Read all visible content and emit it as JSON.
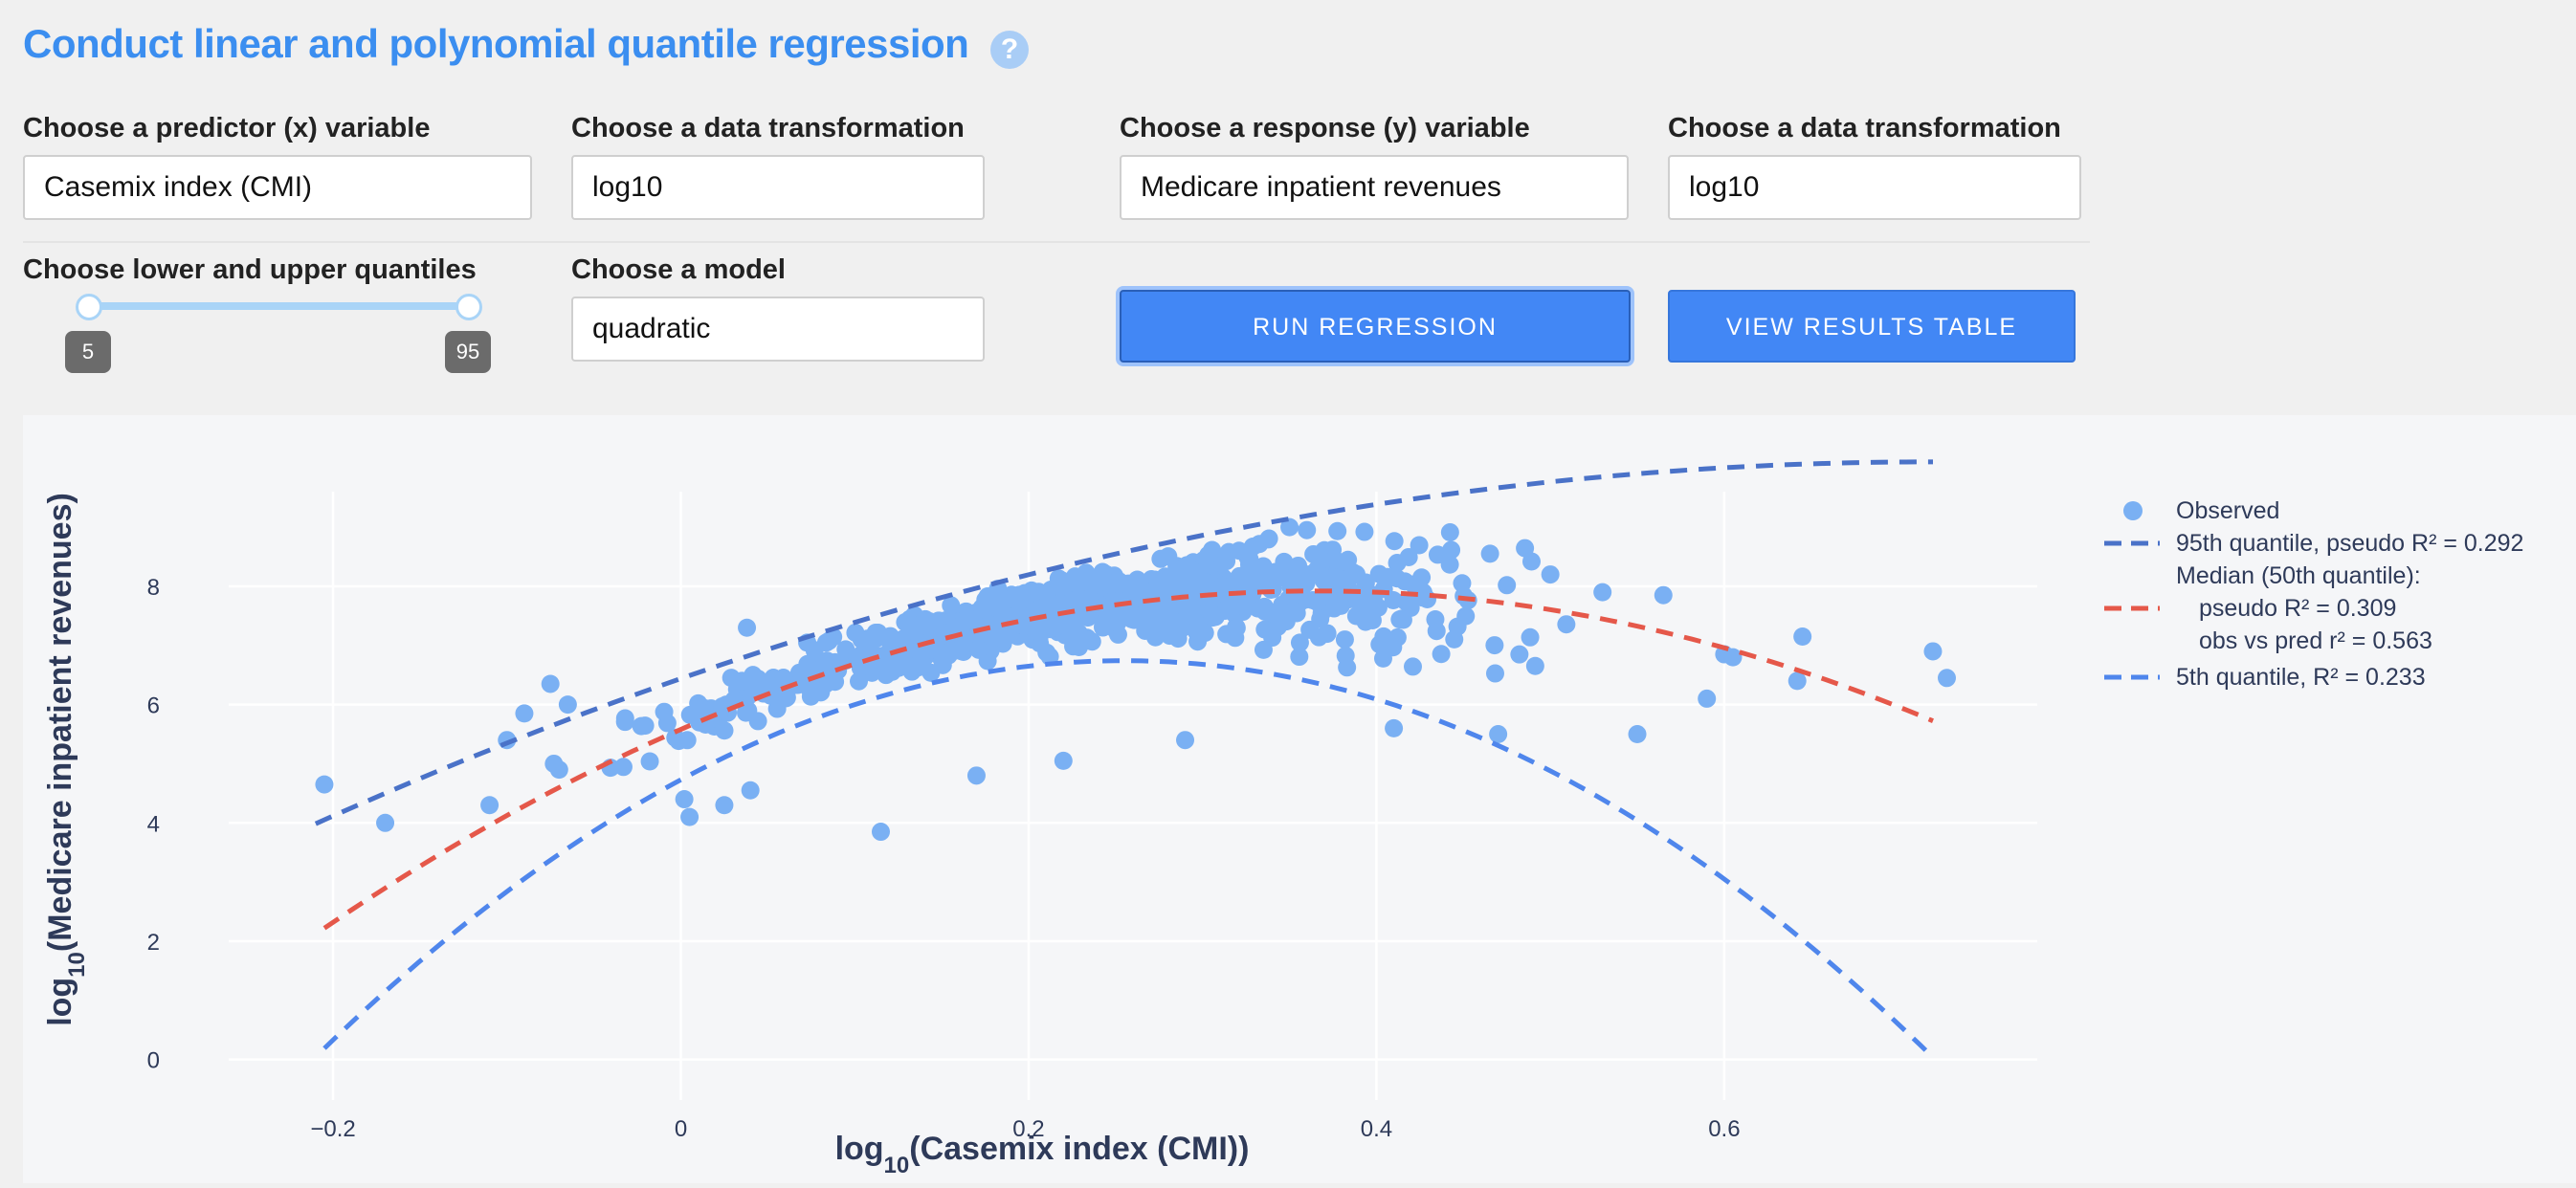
{
  "header": {
    "title": "Conduct linear and polynomial quantile regression",
    "help_icon": "?"
  },
  "controls": {
    "x_var_label": "Choose a predictor (x) variable",
    "x_var_value": "Casemix index (CMI)",
    "x_transform_label": "Choose a data transformation",
    "x_transform_value": "log10",
    "y_var_label": "Choose a response (y) variable",
    "y_var_value": "Medicare inpatient revenues",
    "y_transform_label": "Choose a data transformation",
    "y_transform_value": "log10",
    "quantiles_label": "Choose lower and upper quantiles",
    "quantile_lower": "5",
    "quantile_upper": "95",
    "model_label": "Choose a model",
    "model_value": "quadratic",
    "run_button": "RUN REGRESSION",
    "results_button": "VIEW RESULTS TABLE"
  },
  "colors": {
    "accent": "#3b8ef0",
    "observed": "#7ab0f3",
    "q95": "#4a72c8",
    "median": "#e5584a",
    "q5": "#4f86ec"
  },
  "chart_data": {
    "type": "scatter",
    "xlabel_prefix": "log",
    "xlabel_sub": "10",
    "xlabel_rest": "(Casemix index (CMI))",
    "ylabel_prefix": "log",
    "ylabel_sub": "10",
    "ylabel_rest": "(Medicare inpatient revenues)",
    "xlim": [
      -0.26,
      0.78
    ],
    "ylim": [
      -0.2,
      9.6
    ],
    "xticks": [
      -0.2,
      0,
      0.2,
      0.4,
      0.6
    ],
    "xtick_labels": [
      "−0.2",
      "0",
      "0.2",
      "0.4",
      "0.6"
    ],
    "yticks": [
      0,
      2,
      4,
      6,
      8
    ],
    "ytick_labels": [
      "0",
      "2",
      "4",
      "6",
      "8"
    ],
    "grid": true,
    "legend_position": "right",
    "legend": [
      {
        "kind": "marker",
        "lines": [
          "Observed"
        ]
      },
      {
        "kind": "line",
        "series": "q95",
        "lines": [
          "95th quantile, pseudo R² = 0.292"
        ]
      },
      {
        "kind": "line",
        "series": "median",
        "lines": [
          "Median (50th quantile):",
          "pseudo R² = 0.309",
          "obs vs pred r² = 0.563"
        ]
      },
      {
        "kind": "line",
        "series": "q5",
        "lines": [
          "5th quantile, R² = 0.233"
        ]
      }
    ],
    "curves": {
      "q95": {
        "a": 6.44,
        "b": 10.2,
        "c": -7.1,
        "x_range": [
          -0.21,
          0.72
        ]
      },
      "median": {
        "a": 5.58,
        "b": 12.8,
        "c": -17.5,
        "x_range": [
          -0.205,
          0.72
        ]
      },
      "q5": {
        "a": 4.73,
        "b": 15.8,
        "c": -31.0,
        "x_range": [
          -0.205,
          0.72
        ]
      }
    },
    "scatter_generator": {
      "count": 900,
      "x_center": 0.23,
      "x_spread": 0.13,
      "x_min": -0.21,
      "x_max": 0.73
    },
    "observed_outliers": [
      [
        -0.205,
        4.65
      ],
      [
        -0.17,
        4.0
      ],
      [
        -0.11,
        4.3
      ],
      [
        -0.1,
        5.4
      ],
      [
        -0.09,
        5.85
      ],
      [
        -0.075,
        6.35
      ],
      [
        -0.073,
        5.0
      ],
      [
        -0.07,
        4.9
      ],
      [
        -0.065,
        6.0
      ],
      [
        0.115,
        3.85
      ],
      [
        0.002,
        4.4
      ],
      [
        0.005,
        4.1
      ],
      [
        0.025,
        4.3
      ],
      [
        0.04,
        4.55
      ],
      [
        0.038,
        7.3
      ],
      [
        0.5,
        8.2
      ],
      [
        0.53,
        7.9
      ],
      [
        0.565,
        7.85
      ],
      [
        0.59,
        6.1
      ],
      [
        0.6,
        6.85
      ],
      [
        0.605,
        6.8
      ],
      [
        0.645,
        7.15
      ],
      [
        0.642,
        6.4
      ],
      [
        0.72,
        6.9
      ],
      [
        0.728,
        6.45
      ],
      [
        0.47,
        5.5
      ],
      [
        0.55,
        5.5
      ],
      [
        0.35,
        9.0
      ],
      [
        0.36,
        8.95
      ],
      [
        0.17,
        4.8
      ],
      [
        0.22,
        5.05
      ],
      [
        0.29,
        5.4
      ],
      [
        0.41,
        5.6
      ]
    ]
  }
}
